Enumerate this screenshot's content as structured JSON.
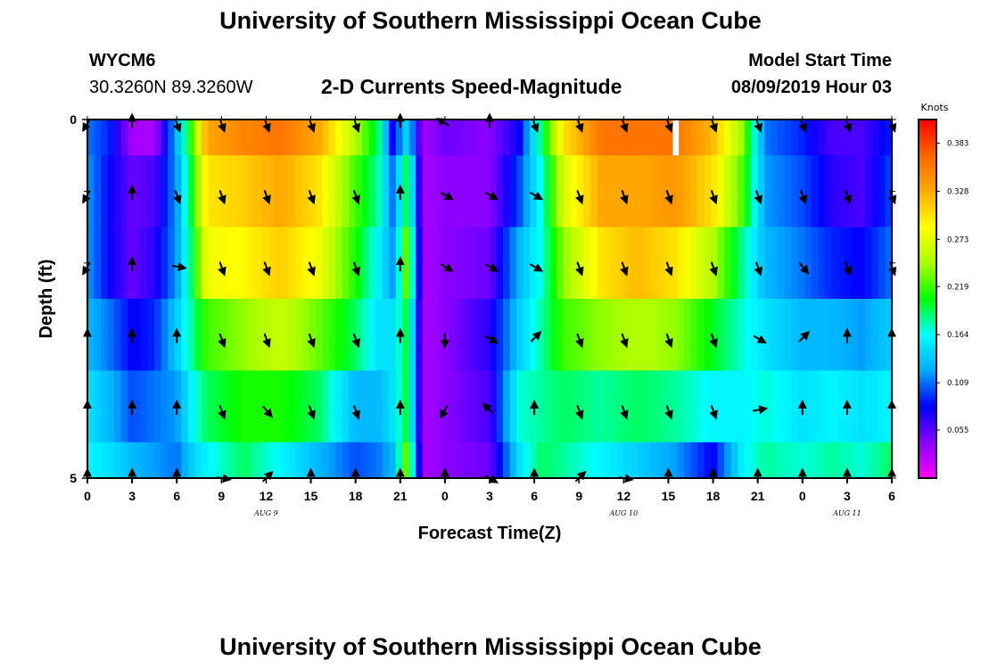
{
  "page": {
    "title_top": "University of Southern Mississippi Ocean Cube",
    "title_bottom": "University of Southern Mississippi Ocean Cube"
  },
  "station": {
    "id": "WYCM6",
    "location": "30.3260N 89.3260W"
  },
  "model": {
    "label": "Model Start Time",
    "start": "08/09/2019 Hour 03"
  },
  "chart_data": {
    "type": "heatmap",
    "title": "2-D Currents Speed-Magnitude",
    "xlabel": "Forecast Time(Z)",
    "ylabel": "Depth (ft)",
    "units": "Knots",
    "x_range_hours": [
      0,
      54
    ],
    "y_range_ft": [
      0,
      5
    ],
    "y_tick_labels": [
      "0",
      "5"
    ],
    "y_minor_ticks_ft": [
      1,
      2,
      3,
      4
    ],
    "x_tick_hours": [
      0,
      3,
      6,
      9,
      12,
      15,
      18,
      21,
      24,
      27,
      30,
      33,
      36,
      39,
      42,
      45,
      48,
      51,
      54
    ],
    "x_tick_labels": [
      "0",
      "3",
      "6",
      "9",
      "12",
      "15",
      "18",
      "21",
      "0",
      "3",
      "6",
      "9",
      "12",
      "15",
      "18",
      "21",
      "0",
      "3",
      "6"
    ],
    "date_labels": [
      {
        "label": "AUG 9",
        "hour": 12
      },
      {
        "label": "AUG 10",
        "hour": 36
      },
      {
        "label": "AUG 11",
        "hour": 51
      }
    ],
    "colorbar": {
      "min": 0.0,
      "max": 0.41,
      "tick_values": [
        0.055,
        0.109,
        0.164,
        0.219,
        0.273,
        0.328,
        0.383
      ],
      "tick_labels": [
        "0.055",
        "0.109",
        "0.164",
        "0.219",
        "0.273",
        "0.328",
        "0.383"
      ],
      "colors": [
        "#ff00ff",
        "#8800ff",
        "#0000ff",
        "#00aaff",
        "#00ffff",
        "#00ff00",
        "#aaff00",
        "#ffff00",
        "#ffaa00",
        "#ff6600",
        "#ff0000"
      ]
    },
    "depth_layers_ft": [
      {
        "top": 0.0,
        "bottom": 0.5
      },
      {
        "top": 0.5,
        "bottom": 1.5
      },
      {
        "top": 1.5,
        "bottom": 2.5
      },
      {
        "top": 2.5,
        "bottom": 3.5
      },
      {
        "top": 3.5,
        "bottom": 4.5
      },
      {
        "top": 4.5,
        "bottom": 5.0
      }
    ],
    "speed_profile_knots": [
      {
        "hour": 0,
        "layers": [
          0.11,
          0.12,
          0.12,
          0.13,
          0.15,
          0.16
        ]
      },
      {
        "hour": 1.5,
        "layers": [
          0.09,
          0.08,
          0.08,
          0.11,
          0.13,
          0.15
        ]
      },
      {
        "hour": 3,
        "layers": [
          0.03,
          0.05,
          0.05,
          0.08,
          0.1,
          0.13
        ]
      },
      {
        "hour": 4.5,
        "layers": [
          0.03,
          0.06,
          0.07,
          0.09,
          0.11,
          0.12
        ]
      },
      {
        "hour": 6,
        "layers": [
          0.13,
          0.12,
          0.12,
          0.14,
          0.12,
          0.11
        ]
      },
      {
        "hour": 7,
        "layers": [
          0.22,
          0.2,
          0.19,
          0.18,
          0.16,
          0.14
        ]
      },
      {
        "hour": 8,
        "layers": [
          0.33,
          0.3,
          0.28,
          0.22,
          0.19,
          0.16
        ]
      },
      {
        "hour": 10.5,
        "layers": [
          0.35,
          0.31,
          0.29,
          0.24,
          0.21,
          0.19
        ]
      },
      {
        "hour": 13,
        "layers": [
          0.36,
          0.33,
          0.31,
          0.26,
          0.21,
          0.16
        ]
      },
      {
        "hour": 15.5,
        "layers": [
          0.33,
          0.3,
          0.28,
          0.23,
          0.19,
          0.13
        ]
      },
      {
        "hour": 18,
        "layers": [
          0.25,
          0.22,
          0.21,
          0.19,
          0.13,
          0.1
        ]
      },
      {
        "hour": 19.5,
        "layers": [
          0.19,
          0.18,
          0.16,
          0.15,
          0.13,
          0.11
        ]
      },
      {
        "hour": 20.5,
        "layers": [
          0.08,
          0.11,
          0.12,
          0.15,
          0.15,
          0.13
        ]
      },
      {
        "hour": 21.5,
        "layers": [
          0.15,
          0.2,
          0.24,
          0.2,
          0.2,
          0.24
        ]
      },
      {
        "hour": 22.5,
        "layers": [
          0.03,
          0.03,
          0.03,
          0.03,
          0.03,
          0.03
        ]
      },
      {
        "hour": 24,
        "layers": [
          0.05,
          0.04,
          0.04,
          0.04,
          0.04,
          0.04
        ]
      },
      {
        "hour": 27,
        "layers": [
          0.04,
          0.04,
          0.05,
          0.07,
          0.06,
          0.05
        ]
      },
      {
        "hour": 29,
        "layers": [
          0.08,
          0.1,
          0.13,
          0.14,
          0.17,
          0.15
        ]
      },
      {
        "hour": 30.5,
        "layers": [
          0.19,
          0.17,
          0.17,
          0.18,
          0.18,
          0.19
        ]
      },
      {
        "hour": 32,
        "layers": [
          0.3,
          0.27,
          0.24,
          0.22,
          0.19,
          0.18
        ]
      },
      {
        "hour": 34.5,
        "layers": [
          0.36,
          0.33,
          0.3,
          0.24,
          0.18,
          0.16
        ]
      },
      {
        "hour": 37,
        "layers": [
          0.36,
          0.33,
          0.32,
          0.25,
          0.19,
          0.14
        ]
      },
      {
        "hour": 39.5,
        "layers": [
          0.36,
          0.34,
          0.3,
          0.24,
          0.18,
          0.12
        ]
      },
      {
        "hour": 42,
        "layers": [
          0.32,
          0.3,
          0.25,
          0.2,
          0.16,
          0.08
        ]
      },
      {
        "hour": 44,
        "layers": [
          0.24,
          0.22,
          0.18,
          0.17,
          0.16,
          0.16
        ]
      },
      {
        "hour": 45.5,
        "layers": [
          0.11,
          0.12,
          0.13,
          0.15,
          0.17,
          0.18
        ]
      },
      {
        "hour": 48,
        "layers": [
          0.09,
          0.1,
          0.11,
          0.13,
          0.15,
          0.17
        ]
      },
      {
        "hour": 50,
        "layers": [
          0.06,
          0.07,
          0.09,
          0.13,
          0.16,
          0.18
        ]
      },
      {
        "hour": 52,
        "layers": [
          0.06,
          0.06,
          0.08,
          0.12,
          0.15,
          0.17
        ]
      },
      {
        "hour": 54,
        "layers": [
          0.09,
          0.1,
          0.11,
          0.14,
          0.16,
          0.19
        ]
      }
    ],
    "missing_data": [
      {
        "hour_start": 39.3,
        "hour_end": 39.7,
        "depth_top": 0.0,
        "depth_bottom": 0.5
      }
    ],
    "vector_hours": [
      0,
      3,
      6,
      9,
      12,
      15,
      18,
      21,
      24,
      27,
      30,
      33,
      36,
      39,
      42,
      45,
      48,
      51,
      54
    ],
    "vector_depths_ft": [
      0.05,
      1.05,
      2.05,
      3.05,
      4.05,
      5.0
    ],
    "vector_directions_deg": [
      [
        210,
        0,
        160,
        160,
        160,
        160,
        160,
        0,
        300,
        0,
        160,
        160,
        160,
        160,
        160,
        160,
        160,
        160,
        160
      ],
      [
        210,
        0,
        160,
        160,
        160,
        160,
        160,
        0,
        120,
        120,
        120,
        160,
        160,
        160,
        160,
        160,
        160,
        160,
        160
      ],
      [
        210,
        0,
        100,
        160,
        160,
        160,
        160,
        0,
        120,
        120,
        120,
        160,
        160,
        160,
        160,
        160,
        140,
        160,
        160
      ],
      [
        0,
        0,
        0,
        160,
        160,
        160,
        160,
        0,
        180,
        120,
        45,
        160,
        160,
        160,
        160,
        120,
        45,
        0,
        0
      ],
      [
        0,
        0,
        0,
        160,
        140,
        160,
        160,
        0,
        210,
        315,
        0,
        160,
        160,
        160,
        160,
        80,
        0,
        0,
        0
      ],
      [
        0,
        0,
        0,
        100,
        45,
        0,
        0,
        0,
        0,
        120,
        0,
        45,
        100,
        0,
        0,
        0,
        0,
        0,
        0
      ]
    ]
  }
}
